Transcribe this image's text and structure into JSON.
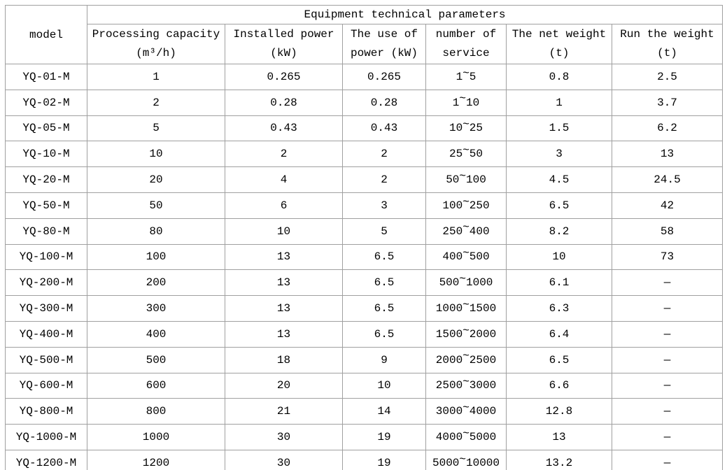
{
  "chart_data": {
    "type": "table",
    "title": "Equipment technical parameters",
    "corner_header": "model",
    "column_headers": [
      [
        "Processing capacity",
        "(m³/h)"
      ],
      [
        "Installed power",
        "(kW)"
      ],
      [
        "The use of",
        "power (kW)"
      ],
      [
        "number of",
        "service"
      ],
      [
        "The net weight",
        "(t)"
      ],
      [
        "Run the weight",
        "(t)"
      ]
    ],
    "rows": [
      [
        "YQ-01-M",
        "1",
        "0.265",
        "0.265",
        "1~5",
        "0.8",
        "2.5"
      ],
      [
        "YQ-02-M",
        "2",
        "0.28",
        "0.28",
        "1~10",
        "1",
        "3.7"
      ],
      [
        "YQ-05-M",
        "5",
        "0.43",
        "0.43",
        "10~25",
        "1.5",
        "6.2"
      ],
      [
        "YQ-10-M",
        "10",
        "2",
        "2",
        "25~50",
        "3",
        "13"
      ],
      [
        "YQ-20-M",
        "20",
        "4",
        "2",
        "50~100",
        "4.5",
        "24.5"
      ],
      [
        "YQ-50-M",
        "50",
        "6",
        "3",
        "100~250",
        "6.5",
        "42"
      ],
      [
        "YQ-80-M",
        "80",
        "10",
        "5",
        "250~400",
        "8.2",
        "58"
      ],
      [
        "YQ-100-M",
        "100",
        "13",
        "6.5",
        "400~500",
        "10",
        "73"
      ],
      [
        "YQ-200-M",
        "200",
        "13",
        "6.5",
        "500~1000",
        "6.1",
        "—"
      ],
      [
        "YQ-300-M",
        "300",
        "13",
        "6.5",
        "1000~1500",
        "6.3",
        "—"
      ],
      [
        "YQ-400-M",
        "400",
        "13",
        "6.5",
        "1500~2000",
        "6.4",
        "—"
      ],
      [
        "YQ-500-M",
        "500",
        "18",
        "9",
        "2000~2500",
        "6.5",
        "—"
      ],
      [
        "YQ-600-M",
        "600",
        "20",
        "10",
        "2500~3000",
        "6.6",
        "—"
      ],
      [
        "YQ-800-M",
        "800",
        "21",
        "14",
        "3000~4000",
        "12.8",
        "—"
      ],
      [
        "YQ-1000-M",
        "1000",
        "30",
        "19",
        "4000~5000",
        "13",
        "—"
      ],
      [
        "YQ-1200-M",
        "1200",
        "30",
        "19",
        "5000~10000",
        "13.2",
        "—"
      ]
    ],
    "no_data_marker": "—"
  },
  "colors": {
    "border": "#a0a0a0",
    "text": "#000000",
    "background": "#ffffff"
  }
}
